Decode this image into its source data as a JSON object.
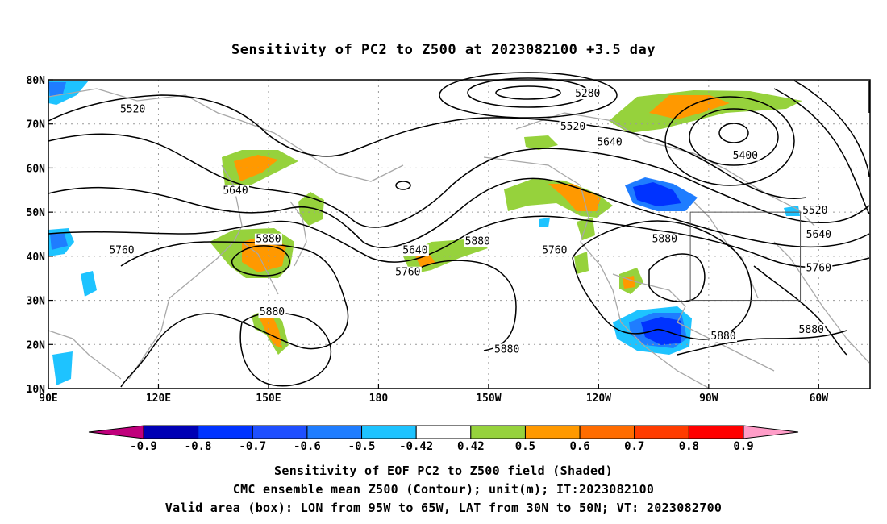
{
  "chart_data": {
    "type": "heatmap",
    "title": "Sensitivity of PC2 to Z500 at 2023082100 +3.5 day",
    "x_ticks": [
      "90E",
      "120E",
      "150E",
      "180",
      "150W",
      "120W",
      "90W",
      "60W"
    ],
    "x_tick_lons": [
      90,
      120,
      150,
      180,
      210,
      240,
      270,
      300
    ],
    "y_ticks": [
      "10N",
      "20N",
      "30N",
      "40N",
      "50N",
      "60N",
      "70N",
      "80N"
    ],
    "y_tick_lats": [
      10,
      20,
      30,
      40,
      50,
      60,
      70,
      80
    ],
    "xlim": [
      90,
      314
    ],
    "ylim": [
      10,
      80
    ],
    "grid": true,
    "colorbar": {
      "labels": [
        "-0.9",
        "-0.8",
        "-0.7",
        "-0.6",
        "-0.5",
        "-0.42",
        "0.42",
        "0.5",
        "0.6",
        "0.7",
        "0.8",
        "0.9"
      ],
      "colors": [
        "#c0007c",
        "#0000b4",
        "#0033ff",
        "#1f4fff",
        "#1f7dff",
        "#1ec3ff",
        "#ffffff",
        "#96d23c",
        "#ff9900",
        "#ff6c00",
        "#ff3c00",
        "#ff0000",
        "#ff9dc8"
      ]
    },
    "contour_labels": [
      {
        "text": "5520",
        "lon": 113,
        "lat": 73
      },
      {
        "text": "5280",
        "lon": 237,
        "lat": 76.5
      },
      {
        "text": "5520",
        "lon": 233,
        "lat": 69
      },
      {
        "text": "5640",
        "lon": 243,
        "lat": 65.5
      },
      {
        "text": "5400",
        "lon": 280,
        "lat": 62.5
      },
      {
        "text": "5520",
        "lon": 299,
        "lat": 50
      },
      {
        "text": "5640",
        "lon": 141,
        "lat": 54.5
      },
      {
        "text": "5760",
        "lon": 110,
        "lat": 41
      },
      {
        "text": "5880",
        "lon": 150,
        "lat": 43.5
      },
      {
        "text": "5640",
        "lon": 190,
        "lat": 41
      },
      {
        "text": "5760",
        "lon": 188,
        "lat": 36
      },
      {
        "text": "5880",
        "lon": 207,
        "lat": 43
      },
      {
        "text": "5760",
        "lon": 228,
        "lat": 41
      },
      {
        "text": "5880",
        "lon": 258,
        "lat": 43.5
      },
      {
        "text": "5640",
        "lon": 300,
        "lat": 44.5
      },
      {
        "text": "5760",
        "lon": 300,
        "lat": 37
      },
      {
        "text": "5880",
        "lon": 151,
        "lat": 27
      },
      {
        "text": "5880",
        "lon": 274,
        "lat": 21.5
      },
      {
        "text": "5880",
        "lon": 298,
        "lat": 23
      },
      {
        "text": "5880",
        "lon": 215,
        "lat": 18.5
      }
    ],
    "valid_box": {
      "lon": [
        265,
        295
      ],
      "lat": [
        30,
        50
      ]
    }
  },
  "captions": {
    "line1": "Sensitivity of EOF PC2 to Z500 field (Shaded)",
    "line2": "CMC ensemble mean Z500 (Contour); unit(m); IT:2023082100",
    "line3": "Valid area (box): LON from 95W to 65W, LAT from 30N to 50N; VT: 2023082700"
  }
}
